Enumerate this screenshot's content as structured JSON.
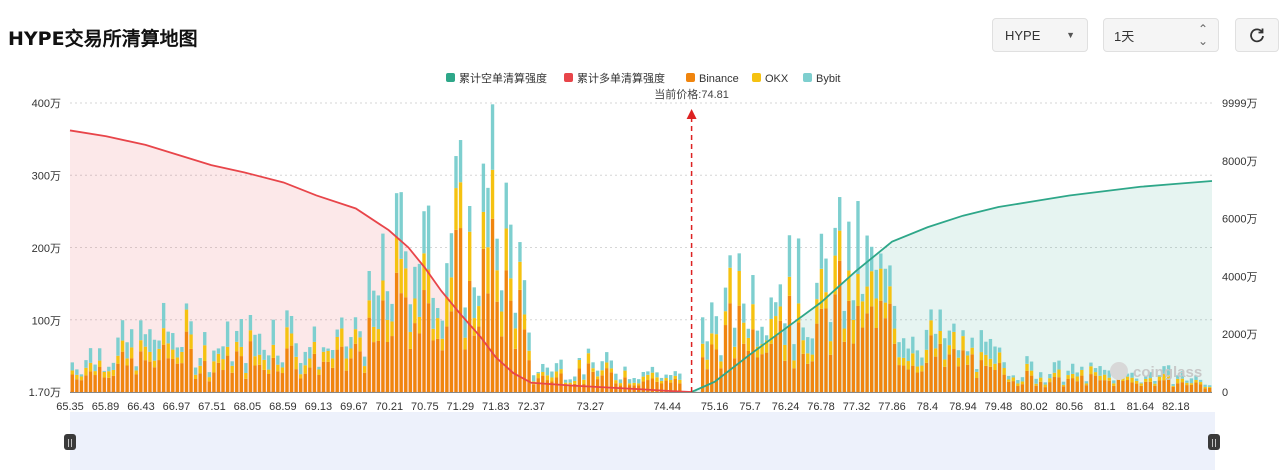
{
  "page": {
    "title": "HYPE交易所清算地图"
  },
  "controls": {
    "coin": "HYPE",
    "range": "1天",
    "refresh_icon": "refresh-icon"
  },
  "watermark": "coinglass",
  "chart_data": {
    "type": "bar",
    "title": "",
    "current_price_label": "当前价格:74.81",
    "current_price": 74.81,
    "legend": [
      "累计空单清算强度",
      "累计多单清算强度",
      "Binance",
      "OKX",
      "Bybit"
    ],
    "legend_position": "top-center",
    "colors": {
      "short_cum": "#2ea789",
      "long_cum": "#e8454a",
      "binance": "#f0850e",
      "okx": "#f5c211",
      "bybit": "#7ecfcf"
    },
    "y_left_ticks": [
      "400万",
      "300万",
      "200万",
      "100万",
      "1.70万"
    ],
    "y_left_range": [
      17000,
      4000000
    ],
    "y_right_ticks": [
      "9999万",
      "8000万",
      "6000万",
      "4000万",
      "2000万",
      "0"
    ],
    "y_right_range": [
      0,
      99990000
    ],
    "x_ticks": [
      "65.35",
      "65.89",
      "66.43",
      "66.97",
      "67.51",
      "68.05",
      "68.59",
      "69.13",
      "69.67",
      "70.21",
      "70.75",
      "71.29",
      "71.83",
      "72.37",
      "73.27",
      "74.44",
      "75.16",
      "75.7",
      "76.24",
      "76.78",
      "77.32",
      "77.86",
      "78.4",
      "78.94",
      "79.48",
      "80.02",
      "80.56",
      "81.1",
      "81.64",
      "82.18"
    ],
    "x_range": [
      65.35,
      82.73
    ],
    "long_cumulative": {
      "x": [
        65.35,
        65.9,
        66.5,
        67.0,
        67.5,
        68.0,
        68.6,
        69.1,
        69.7,
        70.2,
        70.5,
        70.75,
        71.0,
        71.29,
        71.6,
        71.83,
        72.1,
        72.37,
        73.0,
        73.5,
        74.0,
        74.44,
        74.81
      ],
      "y": [
        90500000,
        88500000,
        85500000,
        82000000,
        78500000,
        76000000,
        72500000,
        68000000,
        63500000,
        56000000,
        50000000,
        43000000,
        35000000,
        27000000,
        19000000,
        12000000,
        6500000,
        3200000,
        2200000,
        1600000,
        1000000,
        400000,
        0
      ]
    },
    "short_cumulative": {
      "x": [
        74.81,
        75.16,
        75.7,
        76.24,
        76.78,
        77.32,
        77.86,
        78.4,
        78.94,
        79.48,
        80.02,
        80.56,
        81.1,
        81.64,
        82.18,
        82.73
      ],
      "y": [
        0,
        3500000,
        13000000,
        22000000,
        31000000,
        42000000,
        52000000,
        57000000,
        61000000,
        64000000,
        66000000,
        68000000,
        69500000,
        71000000,
        72000000,
        73000000
      ]
    },
    "series": [
      {
        "name": "Binance",
        "values": []
      },
      {
        "name": "OKX",
        "values": []
      },
      {
        "name": "Bybit",
        "values": []
      }
    ],
    "bar_profile": {
      "x": [
        65.35,
        65.9,
        66.4,
        66.97,
        67.5,
        68.05,
        68.6,
        69.1,
        69.6,
        70.0,
        70.3,
        70.6,
        70.8,
        71.0,
        71.29,
        71.5,
        71.7,
        71.83,
        72.0,
        72.2,
        72.37,
        73.0,
        73.6,
        74.3,
        74.81,
        75.0,
        75.4,
        75.7,
        76.0,
        76.24,
        76.5,
        76.78,
        77.0,
        77.32,
        77.6,
        77.86,
        78.1,
        78.4,
        78.9,
        79.5,
        80.0,
        80.6,
        81.1,
        81.6,
        82.2,
        82.73
      ],
      "total": [
        500000,
        750000,
        850000,
        1100000,
        750000,
        950000,
        1150000,
        750000,
        850000,
        1500000,
        2300000,
        3000000,
        2200000,
        2600000,
        2900000,
        2400000,
        3200000,
        3300000,
        2800000,
        2000000,
        400000,
        500000,
        450000,
        350000,
        200000,
        1100000,
        1550000,
        1750000,
        2300000,
        2000000,
        1600000,
        1800000,
        2200000,
        2200000,
        2000000,
        1600000,
        1200000,
        1050000,
        850000,
        550000,
        400000,
        330000,
        350000,
        300000,
        300000,
        150000
      ]
    }
  }
}
